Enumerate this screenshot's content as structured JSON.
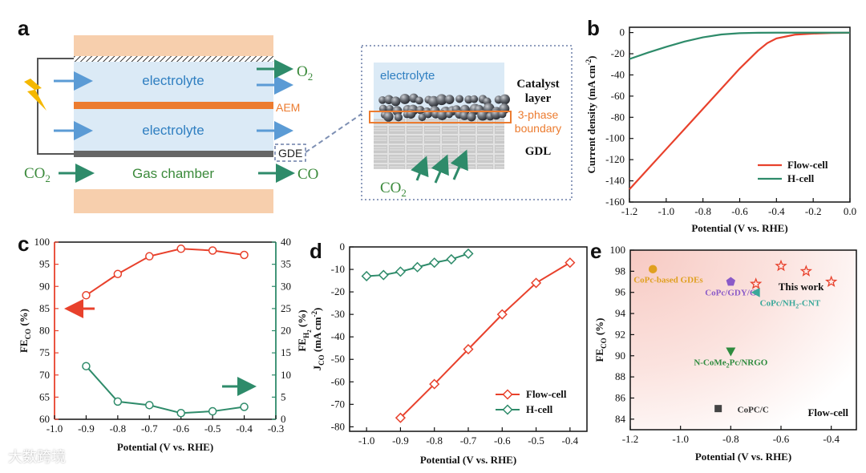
{
  "panels": {
    "a": "a",
    "b": "b",
    "c": "c",
    "d": "d",
    "e": "e"
  },
  "schematic": {
    "electrolyte_top": "electrolyte",
    "electrolyte_bottom": "electrolyte",
    "aem": "AEM",
    "gde": "GDE",
    "gas_chamber": "Gas chamber",
    "o2": "O",
    "o2_sub": "2",
    "co2": "CO",
    "co2_sub": "2",
    "co": "CO",
    "zoom_electrolyte": "electrolyte",
    "catalyst_layer_1": "Catalyst",
    "catalyst_layer_2": "layer",
    "phase_1": "3-phase",
    "phase_2": "boundary",
    "gdl": "GDL",
    "zoom_co2": "CO",
    "zoom_co2_sub": "2",
    "colors": {
      "peach": "#f7cfad",
      "electrolyte": "#dbeaf6",
      "aem": "#ec7c30",
      "arrow_blue": "#5b9bd5",
      "arrow_green": "#2e8b6a",
      "text_green": "#3b8a3b"
    }
  },
  "chart_data": [
    {
      "panel": "b",
      "type": "line",
      "xlabel": "Potential (V vs. RHE)",
      "ylabel": "Current density (mA cm",
      "ylabel_sup": "-2",
      "ylabel_end": ")",
      "xlim": [
        -1.2,
        0.0
      ],
      "ylim": [
        -160,
        5
      ],
      "xticks": [
        "-1.2",
        "-1.0",
        "-0.8",
        "-0.6",
        "-0.4",
        "-0.2",
        "0.0"
      ],
      "yticks": [
        "0",
        "-20",
        "-40",
        "-60",
        "-80",
        "-100",
        "-120",
        "-140",
        "-160"
      ],
      "legend_position": "bottom-right",
      "series": [
        {
          "name": "Flow-cell",
          "color": "#e8412c",
          "x": [
            -1.2,
            -1.1,
            -1.0,
            -0.9,
            -0.8,
            -0.7,
            -0.6,
            -0.5,
            -0.45,
            -0.4,
            -0.3,
            -0.2,
            -0.1,
            0.0
          ],
          "y": [
            -148,
            -129,
            -110,
            -91,
            -72,
            -53,
            -34,
            -17,
            -10,
            -5.5,
            -2,
            -1,
            -0.4,
            -0.2
          ]
        },
        {
          "name": "H-cell",
          "color": "#2e8b6a",
          "x": [
            -1.2,
            -1.1,
            -1.0,
            -0.9,
            -0.8,
            -0.7,
            -0.6,
            -0.5,
            -0.4,
            -0.3,
            -0.2,
            -0.1,
            0.0
          ],
          "y": [
            -25,
            -19,
            -13.5,
            -8.5,
            -4.5,
            -1.8,
            -0.6,
            -0.2,
            -0.1,
            -0.1,
            -0.1,
            -0.1,
            -0.1
          ]
        }
      ]
    },
    {
      "panel": "c",
      "type": "line",
      "xlabel": "Potential (V vs. RHE)",
      "ylabel_left": "FE",
      "ylabel_left_sub": "CO",
      "ylabel_left_end": " (%)",
      "ylabel_right": "FE",
      "ylabel_right_sub": "H",
      "ylabel_right_subsub": "2",
      "ylabel_right_end": " (%)",
      "xlim": [
        -1.0,
        -0.3
      ],
      "ylim_left": [
        60,
        100
      ],
      "ylim_right": [
        0,
        40
      ],
      "xticks": [
        "-1.0",
        "-0.9",
        "-0.8",
        "-0.7",
        "-0.6",
        "-0.5",
        "-0.4",
        "-0.3"
      ],
      "yticks_left": [
        "100",
        "95",
        "90",
        "85",
        "80",
        "75",
        "70",
        "65",
        "60"
      ],
      "yticks_right": [
        "40",
        "35",
        "30",
        "25",
        "20",
        "15",
        "10",
        "5",
        "0"
      ],
      "series": [
        {
          "name": "FE_CO",
          "axis": "left",
          "color": "#e8412c",
          "x": [
            -0.9,
            -0.8,
            -0.7,
            -0.6,
            -0.5,
            -0.4
          ],
          "y": [
            88,
            92.8,
            96.8,
            98.5,
            98.1,
            97.1
          ]
        },
        {
          "name": "FE_H2",
          "axis": "right",
          "color": "#2e8b6a",
          "x": [
            -0.9,
            -0.8,
            -0.7,
            -0.6,
            -0.5,
            -0.4
          ],
          "y": [
            12,
            4,
            3.2,
            1.4,
            1.8,
            2.8
          ]
        }
      ]
    },
    {
      "panel": "d",
      "type": "line",
      "xlabel": "Potential (V vs. RHE)",
      "ylabel": "J",
      "ylabel_sub": "CO",
      "ylabel_mid": " (mA cm",
      "ylabel_sup": "-2",
      "ylabel_end": ")",
      "xlim": [
        -1.05,
        -0.35
      ],
      "ylim": [
        -82,
        0
      ],
      "xticks": [
        "-1.0",
        "-0.9",
        "-0.8",
        "-0.7",
        "-0.6",
        "-0.5",
        "-0.4"
      ],
      "xtick_values": [
        -1.0,
        -0.9,
        -0.8,
        -0.7,
        -0.6,
        -0.5,
        -0.4
      ],
      "yticks": [
        "0",
        "-10",
        "-20",
        "-30",
        "-40",
        "-50",
        "-60",
        "-70",
        "-80"
      ],
      "legend_position": "bottom-right",
      "series": [
        {
          "name": "Flow-cell",
          "color": "#e8412c",
          "x": [
            -0.9,
            -0.8,
            -0.7,
            -0.6,
            -0.5,
            -0.4
          ],
          "y": [
            -76,
            -61,
            -45.5,
            -30,
            -16,
            -7
          ]
        },
        {
          "name": "H-cell",
          "color": "#2e8b6a",
          "x": [
            -1.0,
            -0.95,
            -0.9,
            -0.85,
            -0.8,
            -0.75,
            -0.7
          ],
          "y": [
            -13,
            -12.5,
            -11,
            -9,
            -7,
            -5.5,
            -3
          ]
        }
      ]
    },
    {
      "panel": "e",
      "type": "scatter",
      "xlabel": "Potential (V vs. RHE)",
      "ylabel": "FE",
      "ylabel_sub": "CO",
      "ylabel_end": " (%)",
      "xlim": [
        -1.2,
        -0.3
      ],
      "ylim": [
        83,
        100
      ],
      "xticks": [
        "-1.2",
        "-1.0",
        "-0.8",
        "-0.6",
        "-0.4"
      ],
      "yticks": [
        "100",
        "98",
        "96",
        "94",
        "92",
        "90",
        "88",
        "86",
        "84"
      ],
      "corner_label": "Flow-cell",
      "points": [
        {
          "label": "CoPc-based GDEs",
          "x": -1.11,
          "y": 98.2,
          "marker": "circle",
          "color": "#e0a020"
        },
        {
          "label": "CoPc/GDY/G",
          "x": -0.8,
          "y": 97.0,
          "marker": "pentagon",
          "color": "#8a5ac8"
        },
        {
          "label": "CoPc/NH",
          "label_sub": "2",
          "label_end": "-CNT",
          "x": -0.7,
          "y": 96.0,
          "marker": "triangle-left",
          "color": "#3aa89a"
        },
        {
          "label": "N-CoMe",
          "label_sub": "2",
          "label_end": "Pc/NRGO",
          "x": -0.8,
          "y": 90.4,
          "marker": "triangle-down",
          "color": "#2e8b3e"
        },
        {
          "label": "CoPC/C",
          "x": -0.85,
          "y": 85.0,
          "marker": "square",
          "color": "#444444"
        }
      ],
      "this_work": {
        "label": "This work",
        "color": "#e8412c",
        "x": [
          -0.7,
          -0.6,
          -0.5,
          -0.4
        ],
        "y": [
          96.8,
          98.5,
          98.0,
          97.0
        ]
      }
    }
  ],
  "watermark": "大数跨境"
}
